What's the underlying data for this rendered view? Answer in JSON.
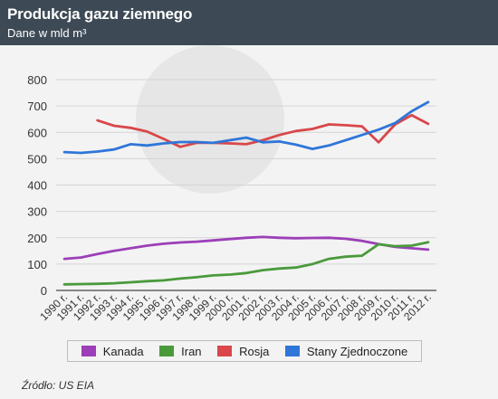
{
  "header": {
    "title": "Produkcja gazu ziemnego",
    "subtitle": "Dane w mld m³"
  },
  "source": "Źródło: US EIA",
  "colors": {
    "header_bg": "#3d4a56",
    "Kanada": "#9c3fb8",
    "Iran": "#4a9a3c",
    "Rosja": "#d9474a",
    "Stany Zjednoczone": "#2f76d9"
  },
  "chart_data": {
    "type": "line",
    "title": "Produkcja gazu ziemnego",
    "ylabel": "",
    "xlabel": "",
    "ylim": [
      0,
      800
    ],
    "yticks": [
      0,
      100,
      200,
      300,
      400,
      500,
      600,
      700,
      800
    ],
    "grid": true,
    "legend_position": "bottom",
    "categories": [
      "1990 r.",
      "1991 r.",
      "1992 r.",
      "1993 r.",
      "1994 r.",
      "1995 r.",
      "1996 r.",
      "1997 r.",
      "1998 r.",
      "1999 r.",
      "2000 r.",
      "2001 r.",
      "2002 r.",
      "2003 r.",
      "2004 r.",
      "2005 r.",
      "2006 r.",
      "2007 r.",
      "2008 r.",
      "2009 r.",
      "2010 r.",
      "2011 r.",
      "2012 r."
    ],
    "series": [
      {
        "name": "Kanada",
        "values": [
          120,
          125,
          138,
          150,
          160,
          170,
          177,
          182,
          185,
          190,
          195,
          200,
          203,
          200,
          198,
          199,
          200,
          196,
          188,
          176,
          165,
          160,
          155
        ]
      },
      {
        "name": "Iran",
        "values": [
          23,
          24,
          25,
          27,
          31,
          35,
          38,
          45,
          50,
          57,
          60,
          66,
          77,
          83,
          87,
          100,
          120,
          128,
          132,
          175,
          168,
          170,
          183
        ]
      },
      {
        "name": "Rosja",
        "values": [
          null,
          null,
          645,
          625,
          617,
          603,
          575,
          545,
          560,
          560,
          558,
          555,
          570,
          590,
          605,
          613,
          630,
          627,
          623,
          562,
          630,
          665,
          632
        ]
      },
      {
        "name": "Stany Zjednoczone",
        "values": [
          525,
          522,
          527,
          535,
          555,
          550,
          558,
          563,
          563,
          560,
          570,
          580,
          562,
          565,
          553,
          537,
          550,
          570,
          590,
          610,
          635,
          680,
          715
        ]
      }
    ]
  }
}
